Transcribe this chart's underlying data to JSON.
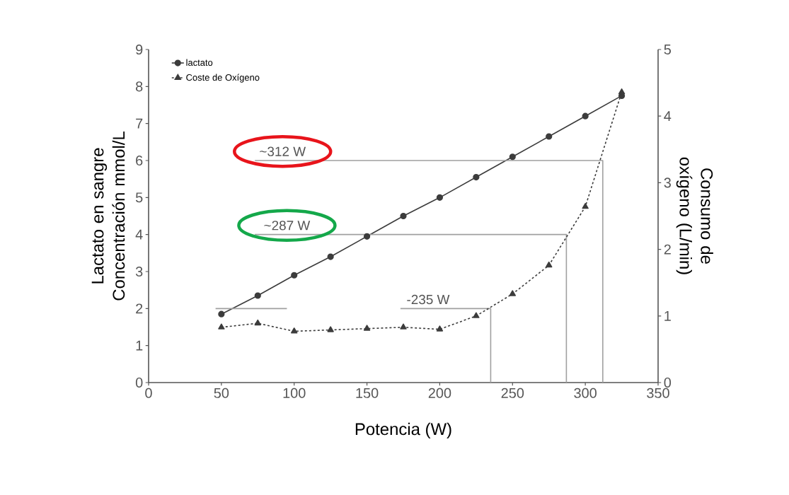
{
  "chart_data": {
    "type": "line",
    "xlabel": "Potencia (W)",
    "ylabel": "Lactato en sangre Concentración mmol/L",
    "y2label": "Consumo de oxígeno (L/min)",
    "xlim": [
      0,
      350
    ],
    "xticks": [
      0,
      50,
      100,
      150,
      200,
      250,
      300,
      350
    ],
    "ylim": [
      0,
      9
    ],
    "yticks": [
      0,
      1,
      2,
      3,
      4,
      5,
      6,
      7,
      8,
      9
    ],
    "y2lim": [
      0,
      5
    ],
    "y2ticks": [
      0,
      1,
      2,
      3,
      4,
      5
    ],
    "legend": "top left",
    "grid": false,
    "series": [
      {
        "name": "lactato",
        "color": "#3c3c3c",
        "marker": "circle",
        "line_style": "solid",
        "x": [
          50,
          75,
          100,
          125,
          150,
          175,
          200,
          225,
          250,
          275,
          300,
          325
        ],
        "values": [
          1.85,
          2.35,
          2.9,
          3.4,
          3.95,
          4.5,
          5.0,
          5.55,
          6.1,
          6.65,
          7.2,
          7.75
        ]
      },
      {
        "name": "Coste de Oxígeno",
        "axis": "y2",
        "color": "#3c3c3c",
        "marker": "triangle",
        "line_style": "dashed",
        "x": [
          50,
          75,
          100,
          125,
          150,
          175,
          200,
          225,
          250,
          275,
          300,
          325
        ],
        "values": [
          0.83,
          0.89,
          0.77,
          0.79,
          0.81,
          0.83,
          0.8,
          1.0,
          1.33,
          1.76,
          2.64,
          4.36
        ]
      },
      {
        "color": "#a0a0a0",
        "marker": "none",
        "line_style": "solid",
        "x": [
          46,
          95
        ],
        "values": [
          2,
          2
        ]
      },
      {
        "color": "#a0a0a0",
        "marker": "none",
        "line_style": "solid",
        "x": [
          173,
          235,
          235
        ],
        "values": [
          2,
          2,
          0
        ]
      },
      {
        "color": "#a0a0a0",
        "marker": "none",
        "line_style": "solid",
        "x": [
          73,
          287,
          287
        ],
        "values": [
          4,
          4,
          0
        ]
      },
      {
        "color": "#a0a0a0",
        "marker": "none",
        "line_style": "solid",
        "x": [
          73,
          312,
          312
        ],
        "values": [
          6,
          6,
          0
        ]
      }
    ],
    "annotations": [
      {
        "text": "~312 W",
        "x": 92,
        "y": 6.05
      },
      {
        "text": "~287 W",
        "x": 95,
        "y": 4.05
      },
      {
        "text": "-235 W",
        "x": 192,
        "y": 2.05
      }
    ]
  }
}
